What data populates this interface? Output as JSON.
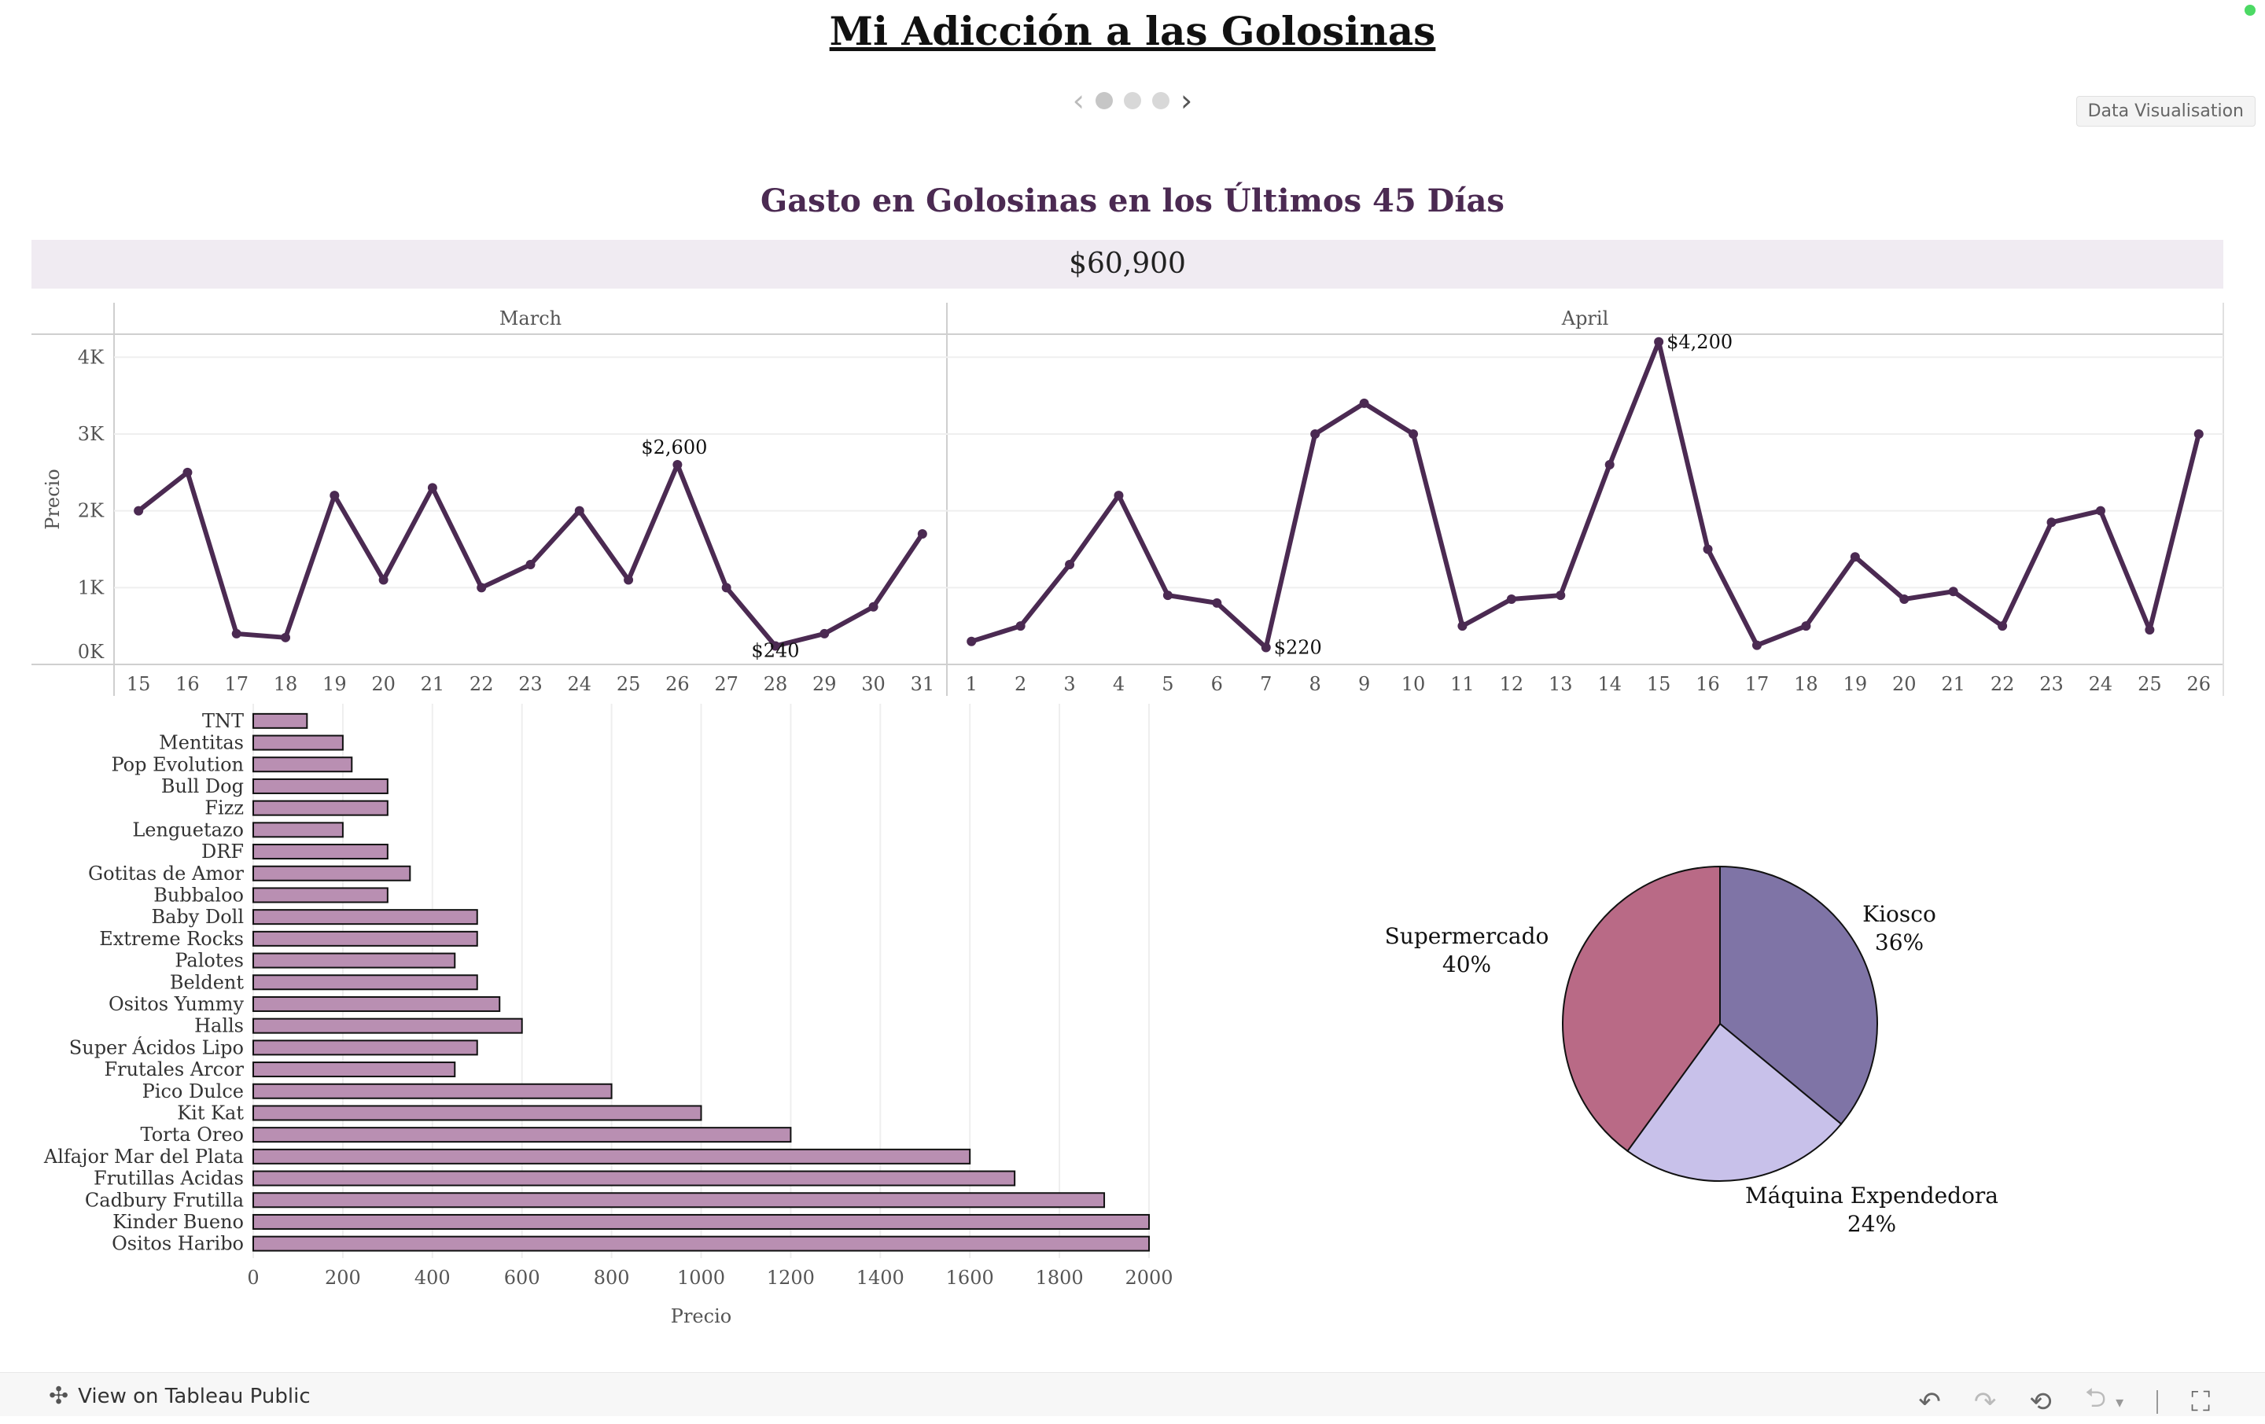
{
  "story": {
    "title": "Mi Adicción a las Golosinas",
    "tooltip": "Data Visualisation",
    "nav": {
      "pages": 3,
      "active": 0,
      "prev_icon": "chevron-left-icon",
      "next_icon": "chevron-right-icon"
    }
  },
  "dashboard": {
    "title": "Gasto en Golosinas en los Últimos 45 Días",
    "total": "$60,900"
  },
  "footer": {
    "link_label": "View on Tableau Public",
    "icons": [
      "tableau-logo-icon",
      "undo-icon",
      "redo-icon",
      "revert-icon",
      "share-icon",
      "fullscreen-icon"
    ]
  },
  "colors": {
    "line": "#4b2a52",
    "bar": "#b98fb2",
    "pie_kiosco": "#7f74a6",
    "pie_maquina": "#c8c1ea",
    "pie_supermercado": "#b96a86",
    "title": "#4b2a52"
  },
  "chart_data": [
    {
      "type": "line",
      "ylabel": "Precio",
      "yticks": [
        "0K",
        "1K",
        "2K",
        "3K",
        "4K"
      ],
      "ylim": [
        0,
        4300
      ],
      "panels": [
        {
          "label": "March",
          "x": [
            "15",
            "16",
            "17",
            "18",
            "19",
            "20",
            "21",
            "22",
            "23",
            "24",
            "25",
            "26",
            "27",
            "28",
            "29",
            "30",
            "31"
          ],
          "y": [
            2000,
            2500,
            400,
            350,
            2200,
            1100,
            2300,
            1000,
            1300,
            2000,
            1100,
            2600,
            1000,
            240,
            400,
            750,
            1700
          ]
        },
        {
          "label": "April",
          "x": [
            "1",
            "2",
            "3",
            "4",
            "5",
            "6",
            "7",
            "8",
            "9",
            "10",
            "11",
            "12",
            "13",
            "14",
            "15",
            "16",
            "17",
            "18",
            "19",
            "20",
            "21",
            "22",
            "23",
            "24",
            "25",
            "26"
          ],
          "y": [
            300,
            500,
            1300,
            2200,
            900,
            800,
            220,
            3000,
            3400,
            3000,
            500,
            850,
            900,
            2600,
            4200,
            1500,
            250,
            500,
            1400,
            850,
            950,
            500,
            1850,
            2000,
            450,
            3000
          ]
        }
      ],
      "annotations": [
        {
          "panel": 0,
          "index": 11,
          "label": "$2,600"
        },
        {
          "panel": 0,
          "index": 13,
          "label": "$240"
        },
        {
          "panel": 1,
          "index": 6,
          "label": "$220"
        },
        {
          "panel": 1,
          "index": 14,
          "label": "$4,200"
        }
      ]
    },
    {
      "type": "bar",
      "orientation": "horizontal",
      "xlabel": "Precio",
      "xlim": [
        0,
        2000
      ],
      "xticks": [
        0,
        200,
        400,
        600,
        800,
        1000,
        1200,
        1400,
        1600,
        1800,
        2000
      ],
      "categories": [
        "TNT",
        "Mentitas",
        "Pop Evolution",
        "Bull Dog",
        "Fizz",
        "Lenguetazo",
        "DRF",
        "Gotitas de Amor",
        "Bubbaloo",
        "Baby Doll",
        "Extreme Rocks",
        "Palotes",
        "Beldent",
        "Ositos Yummy",
        "Halls",
        "Super Ácidos Lipo",
        "Frutales Arcor",
        "Pico Dulce",
        "Kit Kat",
        "Torta Oreo",
        "Alfajor Mar del Plata",
        "Frutillas Acidas",
        "Cadbury Frutilla",
        "Kinder Bueno",
        "Ositos Haribo"
      ],
      "values": [
        120,
        200,
        220,
        300,
        300,
        200,
        300,
        350,
        300,
        500,
        500,
        450,
        500,
        550,
        600,
        500,
        450,
        800,
        1000,
        1200,
        1600,
        1700,
        1900,
        2000,
        2000
      ]
    },
    {
      "type": "pie",
      "slices": [
        {
          "label": "Kiosco",
          "pct": "36%",
          "value": 36,
          "color": "#7f74a6"
        },
        {
          "label": "Máquina Expendedora",
          "pct": "24%",
          "value": 24,
          "color": "#c8c1ea"
        },
        {
          "label": "Supermercado",
          "pct": "40%",
          "value": 40,
          "color": "#b96a86"
        }
      ]
    }
  ]
}
